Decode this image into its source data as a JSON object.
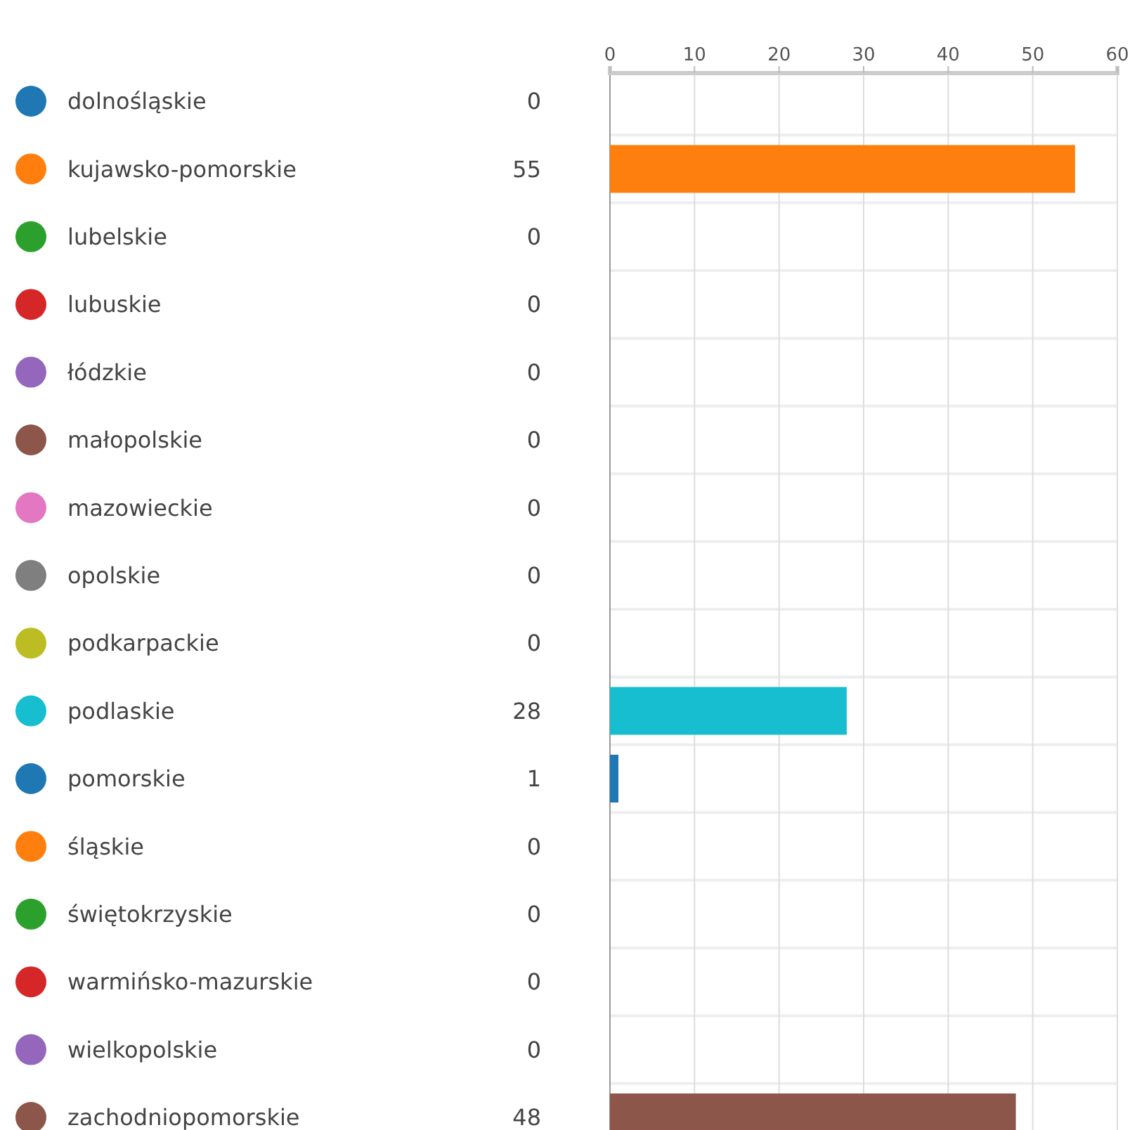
{
  "chart_data": {
    "type": "bar",
    "orientation": "horizontal",
    "categories": [
      "dolnośląskie",
      "kujawsko-pomorskie",
      "lubelskie",
      "lubuskie",
      "łódzkie",
      "małopolskie",
      "mazowieckie",
      "opolskie",
      "podkarpackie",
      "podlaskie",
      "pomorskie",
      "śląskie",
      "świętokrzyskie",
      "warmińsko-mazurskie",
      "wielkopolskie",
      "zachodniopomorskie"
    ],
    "values": [
      0,
      55,
      0,
      0,
      0,
      0,
      0,
      0,
      0,
      28,
      1,
      0,
      0,
      0,
      0,
      48
    ],
    "colors": [
      "#1f77b4",
      "#ff7f0e",
      "#2ca02c",
      "#d62728",
      "#9467bd",
      "#8c564b",
      "#e377c2",
      "#7f7f7f",
      "#bcbd22",
      "#17becf",
      "#1f77b4",
      "#ff7f0e",
      "#2ca02c",
      "#d62728",
      "#9467bd",
      "#8c564b"
    ],
    "x2lim": [
      0,
      60
    ],
    "x2ticks": [
      0,
      10,
      20,
      30,
      40,
      50,
      60
    ],
    "grid": "x",
    "data_labels": true
  }
}
